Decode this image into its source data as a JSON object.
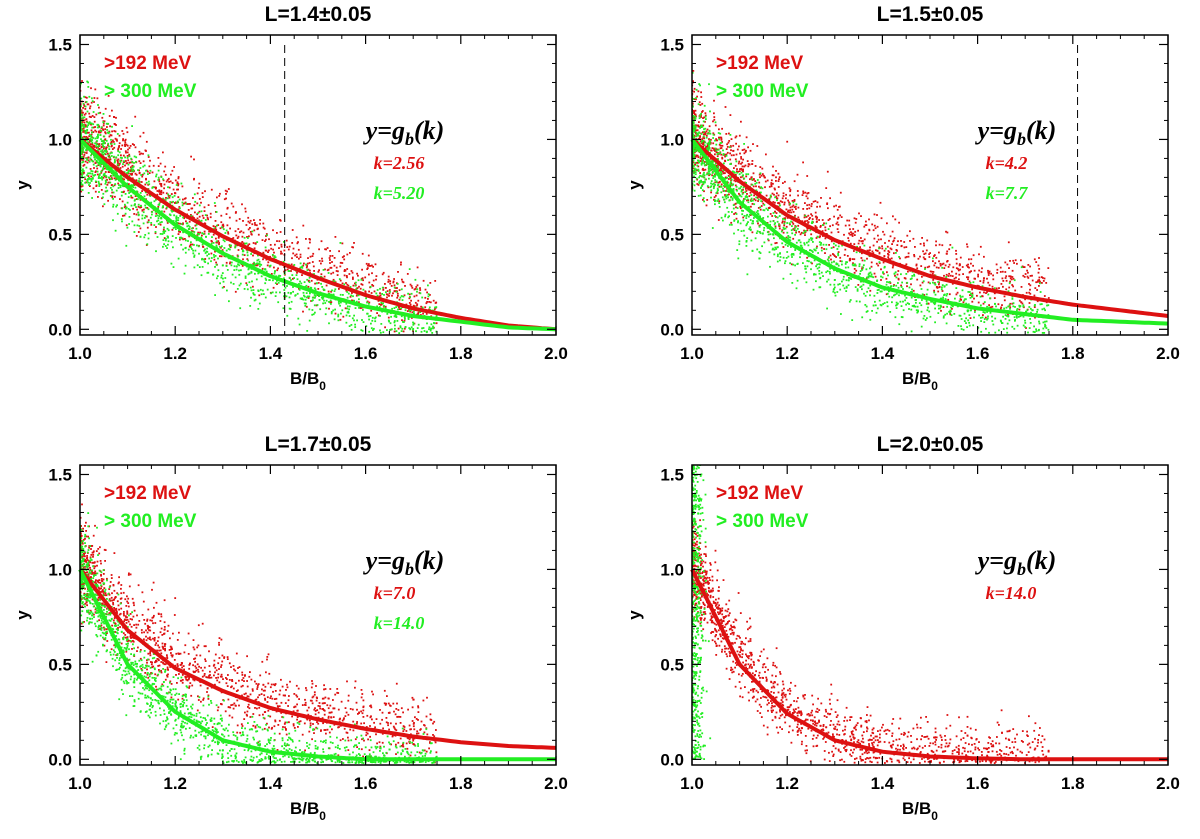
{
  "colors": {
    "red": "#dd1111",
    "green": "#22ee22",
    "axis": "#000000"
  },
  "chart_data": [
    {
      "type": "scatter",
      "title": "L=1.4±0.05",
      "xlabel": "B/B0",
      "ylabel": "y",
      "xlim": [
        1.0,
        2.0
      ],
      "ylim": [
        -0.03,
        1.55
      ],
      "xticks": [
        "1.0",
        "1.2",
        "1.4",
        "1.6",
        "1.8",
        "2.0"
      ],
      "yticks": [
        "0.0",
        "0.5",
        "1.0",
        "1.5"
      ],
      "legend": [
        ">192 MeV",
        "> 300 MeV"
      ],
      "formula": "y=gb(k)",
      "k_labels": [
        "k=2.56",
        "k=5.20"
      ],
      "dashed_line_x": 1.43,
      "series": [
        {
          "name": ">192 MeV",
          "color": "red",
          "k": 2.56,
          "fit_x": [
            1.0,
            1.1,
            1.2,
            1.3,
            1.4,
            1.5,
            1.6,
            1.7,
            1.8,
            1.9,
            2.0
          ],
          "fit_y": [
            1.0,
            0.8,
            0.63,
            0.49,
            0.37,
            0.27,
            0.18,
            0.11,
            0.06,
            0.02,
            0.0
          ]
        },
        {
          "name": "> 300 MeV",
          "color": "green",
          "k": 5.2,
          "fit_x": [
            1.0,
            1.1,
            1.2,
            1.3,
            1.4,
            1.5,
            1.6,
            1.7,
            1.8,
            1.9,
            2.0
          ],
          "fit_y": [
            1.0,
            0.75,
            0.55,
            0.4,
            0.28,
            0.19,
            0.12,
            0.07,
            0.04,
            0.01,
            0.0
          ]
        }
      ]
    },
    {
      "type": "scatter",
      "title": "L=1.5±0.05",
      "xlabel": "B/B0",
      "ylabel": "y",
      "xlim": [
        1.0,
        2.0
      ],
      "ylim": [
        -0.03,
        1.55
      ],
      "xticks": [
        "1.0",
        "1.2",
        "1.4",
        "1.6",
        "1.8",
        "2.0"
      ],
      "yticks": [
        "0.0",
        "0.5",
        "1.0",
        "1.5"
      ],
      "legend": [
        ">192 MeV",
        "> 300 MeV"
      ],
      "formula": "y=gb(k)",
      "k_labels": [
        "k=4.2",
        "k=7.7"
      ],
      "dashed_line_x": 1.81,
      "series": [
        {
          "name": ">192 MeV",
          "color": "red",
          "k": 4.2,
          "fit_x": [
            1.0,
            1.1,
            1.2,
            1.3,
            1.4,
            1.5,
            1.6,
            1.7,
            1.8,
            1.9,
            2.0
          ],
          "fit_y": [
            1.0,
            0.78,
            0.6,
            0.47,
            0.37,
            0.28,
            0.22,
            0.17,
            0.13,
            0.1,
            0.07
          ]
        },
        {
          "name": "> 300 MeV",
          "color": "green",
          "k": 7.7,
          "fit_x": [
            1.0,
            1.1,
            1.2,
            1.3,
            1.4,
            1.5,
            1.6,
            1.7,
            1.8,
            1.9,
            2.0
          ],
          "fit_y": [
            1.0,
            0.67,
            0.46,
            0.32,
            0.22,
            0.16,
            0.11,
            0.08,
            0.05,
            0.04,
            0.03
          ]
        }
      ]
    },
    {
      "type": "scatter",
      "title": "L=1.7±0.05",
      "xlabel": "B/B0",
      "ylabel": "y",
      "xlim": [
        1.0,
        2.0
      ],
      "ylim": [
        -0.03,
        1.55
      ],
      "xticks": [
        "1.0",
        "1.2",
        "1.4",
        "1.6",
        "1.8",
        "2.0"
      ],
      "yticks": [
        "0.0",
        "0.5",
        "1.0",
        "1.5"
      ],
      "legend": [
        ">192 MeV",
        "> 300 MeV"
      ],
      "formula": "y=gb(k)",
      "k_labels": [
        "k=7.0",
        "k=14.0"
      ],
      "series": [
        {
          "name": ">192 MeV",
          "color": "red",
          "k": 7.0,
          "fit_x": [
            1.0,
            1.1,
            1.2,
            1.3,
            1.4,
            1.5,
            1.6,
            1.7,
            1.8,
            1.9,
            2.0
          ],
          "fit_y": [
            1.0,
            0.68,
            0.48,
            0.36,
            0.27,
            0.21,
            0.16,
            0.12,
            0.09,
            0.07,
            0.06
          ]
        },
        {
          "name": "> 300 MeV",
          "color": "green",
          "k": 14.0,
          "fit_x": [
            1.0,
            1.1,
            1.2,
            1.3,
            1.4,
            1.5,
            1.6,
            1.7,
            1.8,
            1.9,
            2.0
          ],
          "fit_y": [
            1.0,
            0.5,
            0.25,
            0.1,
            0.04,
            0.015,
            0.0,
            0.0,
            0.0,
            0.0,
            0.0
          ]
        }
      ]
    },
    {
      "type": "scatter",
      "title": "L=2.0±0.05",
      "xlabel": "B/B0",
      "ylabel": "y",
      "xlim": [
        1.0,
        2.0
      ],
      "ylim": [
        -0.03,
        1.55
      ],
      "xticks": [
        "1.0",
        "1.2",
        "1.4",
        "1.6",
        "1.8",
        "2.0"
      ],
      "yticks": [
        "0.0",
        "0.5",
        "1.0",
        "1.5"
      ],
      "legend": [
        ">192 MeV",
        "> 300 MeV"
      ],
      "formula": "y=gb(k)",
      "k_labels": [
        "k=14.0"
      ],
      "series": [
        {
          "name": ">192 MeV",
          "color": "red",
          "k": 14.0,
          "fit_x": [
            1.0,
            1.1,
            1.2,
            1.3,
            1.4,
            1.5,
            1.6,
            1.7,
            1.8,
            1.9,
            2.0
          ],
          "fit_y": [
            1.0,
            0.5,
            0.24,
            0.1,
            0.04,
            0.015,
            0.005,
            0.0,
            0.0,
            0.0,
            0.0
          ]
        }
      ]
    }
  ]
}
